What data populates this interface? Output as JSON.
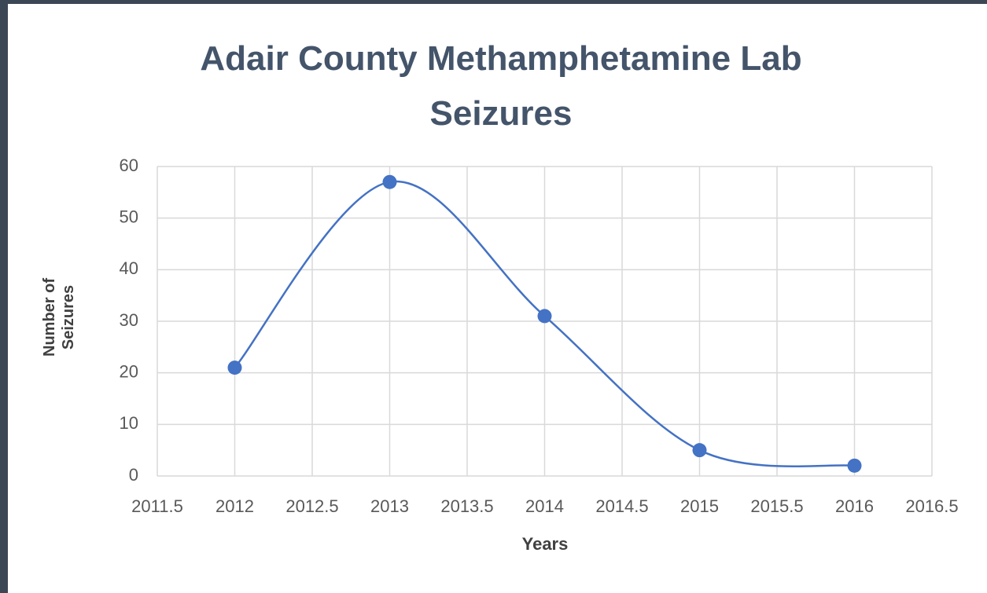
{
  "chart_data": {
    "type": "scatter",
    "title": "Adair County Methamphetamine Lab Seizures",
    "x_label": "Years",
    "y_label": "Number of Seizures",
    "series": [
      {
        "name": "Seizures",
        "color": "#4472c4",
        "smooth": true,
        "x": [
          2012,
          2013,
          2014,
          2015,
          2016
        ],
        "values": [
          21,
          57,
          31,
          5,
          2
        ]
      }
    ],
    "xlim": [
      2011.5,
      2016.5
    ],
    "xticks": [
      2011.5,
      2012,
      2012.5,
      2013,
      2013.5,
      2014,
      2014.5,
      2015,
      2015.5,
      2016,
      2016.5
    ],
    "ylim": [
      0,
      60
    ],
    "yticks": [
      0,
      10,
      20,
      30,
      40,
      50,
      60
    ],
    "grid": true
  }
}
